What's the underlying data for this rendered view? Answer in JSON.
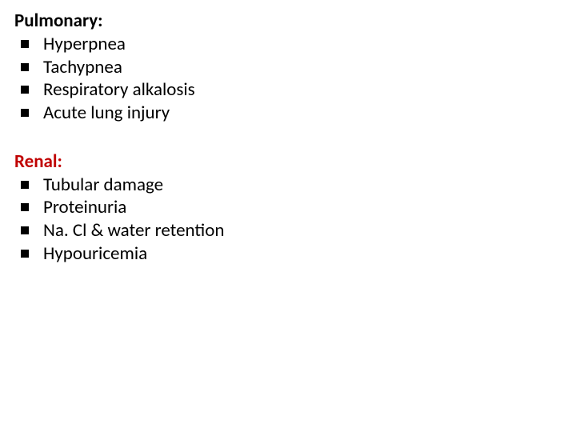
{
  "colors": {
    "heading_black": "#000000",
    "heading_red": "#c00000",
    "text": "#000000",
    "bullet": "#000000",
    "background": "#ffffff"
  },
  "typography": {
    "font_family": "Calibri, Arial, sans-serif",
    "heading_fontsize": 23,
    "heading_fontweight": 700,
    "item_fontsize": 23,
    "line_height": 1.25
  },
  "sections": [
    {
      "heading": "Pulmonary:",
      "heading_color": "#000000",
      "items": [
        "Hyperpnea",
        "Tachypnea",
        "Respiratory alkalosis",
        "Acute lung injury"
      ]
    },
    {
      "heading": "Renal:",
      "heading_color": "#c00000",
      "items": [
        "Tubular damage",
        "Proteinuria",
        "Na. Cl & water retention",
        "Hypouricemia"
      ]
    }
  ]
}
